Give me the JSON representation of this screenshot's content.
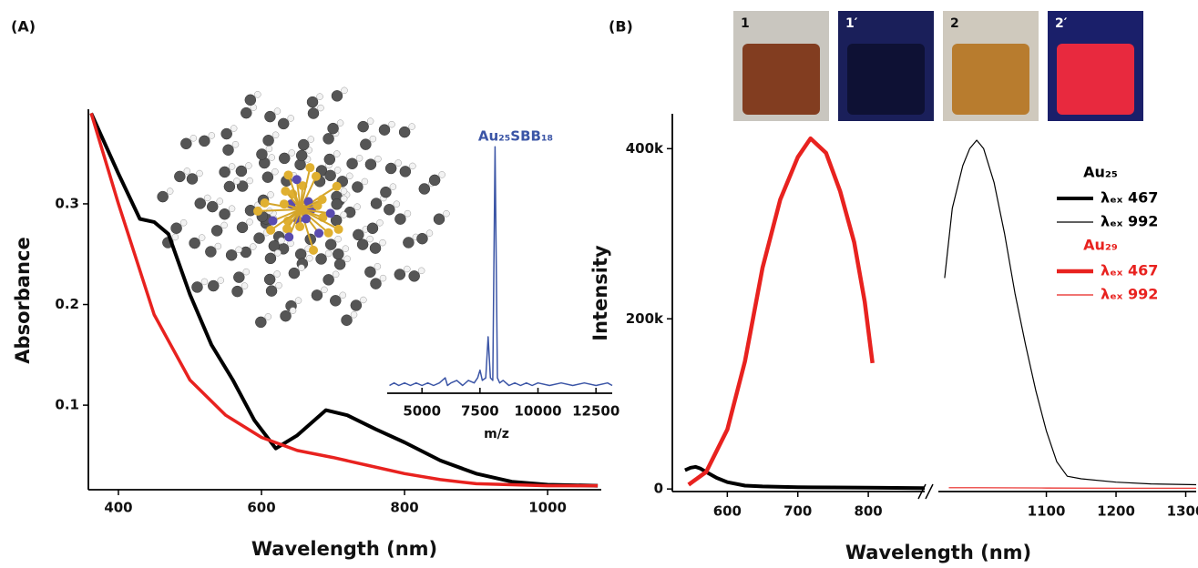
{
  "chart_data": [
    {
      "type": "line",
      "panel_label": "(A)",
      "x_label": "Wavelength (nm)",
      "y_label": "Absorbance",
      "xlim": [
        358,
        1075
      ],
      "xticks": [
        400,
        600,
        800,
        1000
      ],
      "ylim": [
        0.016,
        0.394
      ],
      "yticks": [
        0.1,
        0.2,
        0.3
      ],
      "series": [
        {
          "color": "#000000",
          "line_width": 4,
          "x": [
            362,
            400,
            430,
            450,
            470,
            500,
            530,
            560,
            590,
            620,
            650,
            690,
            720,
            760,
            800,
            850,
            900,
            950,
            1000,
            1070
          ],
          "values": [
            0.39,
            0.33,
            0.285,
            0.282,
            0.27,
            0.21,
            0.16,
            0.125,
            0.085,
            0.057,
            0.07,
            0.095,
            0.09,
            0.076,
            0.063,
            0.045,
            0.032,
            0.024,
            0.021,
            0.02
          ]
        },
        {
          "color": "#e8221f",
          "line_width": 3.5,
          "x": [
            362,
            400,
            450,
            500,
            550,
            600,
            650,
            700,
            750,
            800,
            850,
            900,
            1000,
            1070
          ],
          "values": [
            0.39,
            0.3,
            0.19,
            0.125,
            0.09,
            0.068,
            0.055,
            0.048,
            0.04,
            0.032,
            0.026,
            0.022,
            0.02,
            0.02
          ]
        }
      ]
    },
    {
      "type": "line",
      "x_label": "m/z",
      "annotation": "Au₂₅SBB₁₈",
      "xlim": [
        3500,
        13200
      ],
      "xticks": [
        5000,
        7500,
        10000,
        12500
      ],
      "ylim": [
        0,
        1
      ],
      "series": [
        {
          "color": "#3b55a6",
          "line_width": 1.5,
          "x": [
            3600,
            3800,
            4000,
            4250,
            4500,
            4750,
            5000,
            5250,
            5500,
            5750,
            6000,
            6100,
            6250,
            6500,
            6750,
            7000,
            7250,
            7400,
            7500,
            7600,
            7750,
            7850,
            7950,
            8050,
            8150,
            8250,
            8350,
            8500,
            8750,
            9000,
            9250,
            9500,
            9750,
            10000,
            10500,
            11000,
            11500,
            12000,
            12500,
            13000,
            13200
          ],
          "values": [
            0.03,
            0.04,
            0.03,
            0.04,
            0.03,
            0.04,
            0.03,
            0.04,
            0.03,
            0.04,
            0.06,
            0.03,
            0.04,
            0.05,
            0.03,
            0.05,
            0.04,
            0.06,
            0.09,
            0.05,
            0.06,
            0.22,
            0.06,
            0.05,
            0.96,
            0.06,
            0.04,
            0.05,
            0.03,
            0.04,
            0.03,
            0.04,
            0.03,
            0.04,
            0.03,
            0.04,
            0.03,
            0.04,
            0.03,
            0.04,
            0.03
          ]
        }
      ]
    },
    {
      "type": "line",
      "panel_label": "(B)",
      "x_label": "Wavelength (nm)",
      "y_label": "Intensity",
      "inset_photos": [
        "1",
        "1′",
        "2",
        "2′"
      ],
      "x_segments": [
        {
          "xlim": [
            522,
            880
          ],
          "xticks": [
            600,
            700,
            800
          ]
        },
        {
          "xlim": [
            945,
            1315
          ],
          "xticks": [
            1100,
            1200,
            1300
          ]
        }
      ],
      "ylim": [
        -3000,
        441000
      ],
      "yticks": [
        0,
        {
          "value": 200000,
          "label": "200k"
        },
        {
          "value": 400000,
          "label": "400k"
        }
      ],
      "legend_groups": [
        {
          "title": "Au₂₅",
          "color": "#000000"
        },
        {
          "title": "Au₂₉",
          "color": "#e8221f"
        }
      ],
      "series": [
        {
          "name": "λₑₓ 467",
          "legend_group": 0,
          "color": "#000000",
          "line_width": 4,
          "x": [
            540,
            548,
            555,
            562,
            570,
            585,
            600,
            625,
            650,
            700,
            750,
            800,
            880
          ],
          "values": [
            22000,
            25000,
            26000,
            24000,
            20000,
            13000,
            8000,
            4000,
            3000,
            2000,
            1800,
            1500,
            1000
          ]
        },
        {
          "name": "λₑₓ 992",
          "legend_group": 0,
          "color": "#000000",
          "line_width": 1.2,
          "x": [
            954,
            965,
            980,
            990,
            1000,
            1010,
            1025,
            1040,
            1055,
            1070,
            1085,
            1100,
            1115,
            1130,
            1150,
            1200,
            1250,
            1315
          ],
          "values": [
            248000,
            330000,
            380000,
            400000,
            410000,
            400000,
            360000,
            300000,
            230000,
            170000,
            115000,
            68000,
            32000,
            15000,
            12000,
            8000,
            6000,
            5000
          ]
        },
        {
          "name": "λₑₓ 467",
          "legend_group": 1,
          "color": "#e8221f",
          "line_width": 4.5,
          "x": [
            545,
            570,
            600,
            625,
            650,
            675,
            700,
            718,
            740,
            760,
            780,
            795,
            806
          ],
          "values": [
            5000,
            20000,
            70000,
            150000,
            260000,
            340000,
            390000,
            412000,
            395000,
            350000,
            290000,
            220000,
            148000
          ]
        },
        {
          "name": "λₑₓ 992",
          "legend_group": 1,
          "color": "#e8221f",
          "line_width": 1.2,
          "x": [
            960,
            1000,
            1100,
            1200,
            1315
          ],
          "values": [
            1500,
            1500,
            1200,
            1000,
            1000
          ]
        }
      ]
    }
  ]
}
